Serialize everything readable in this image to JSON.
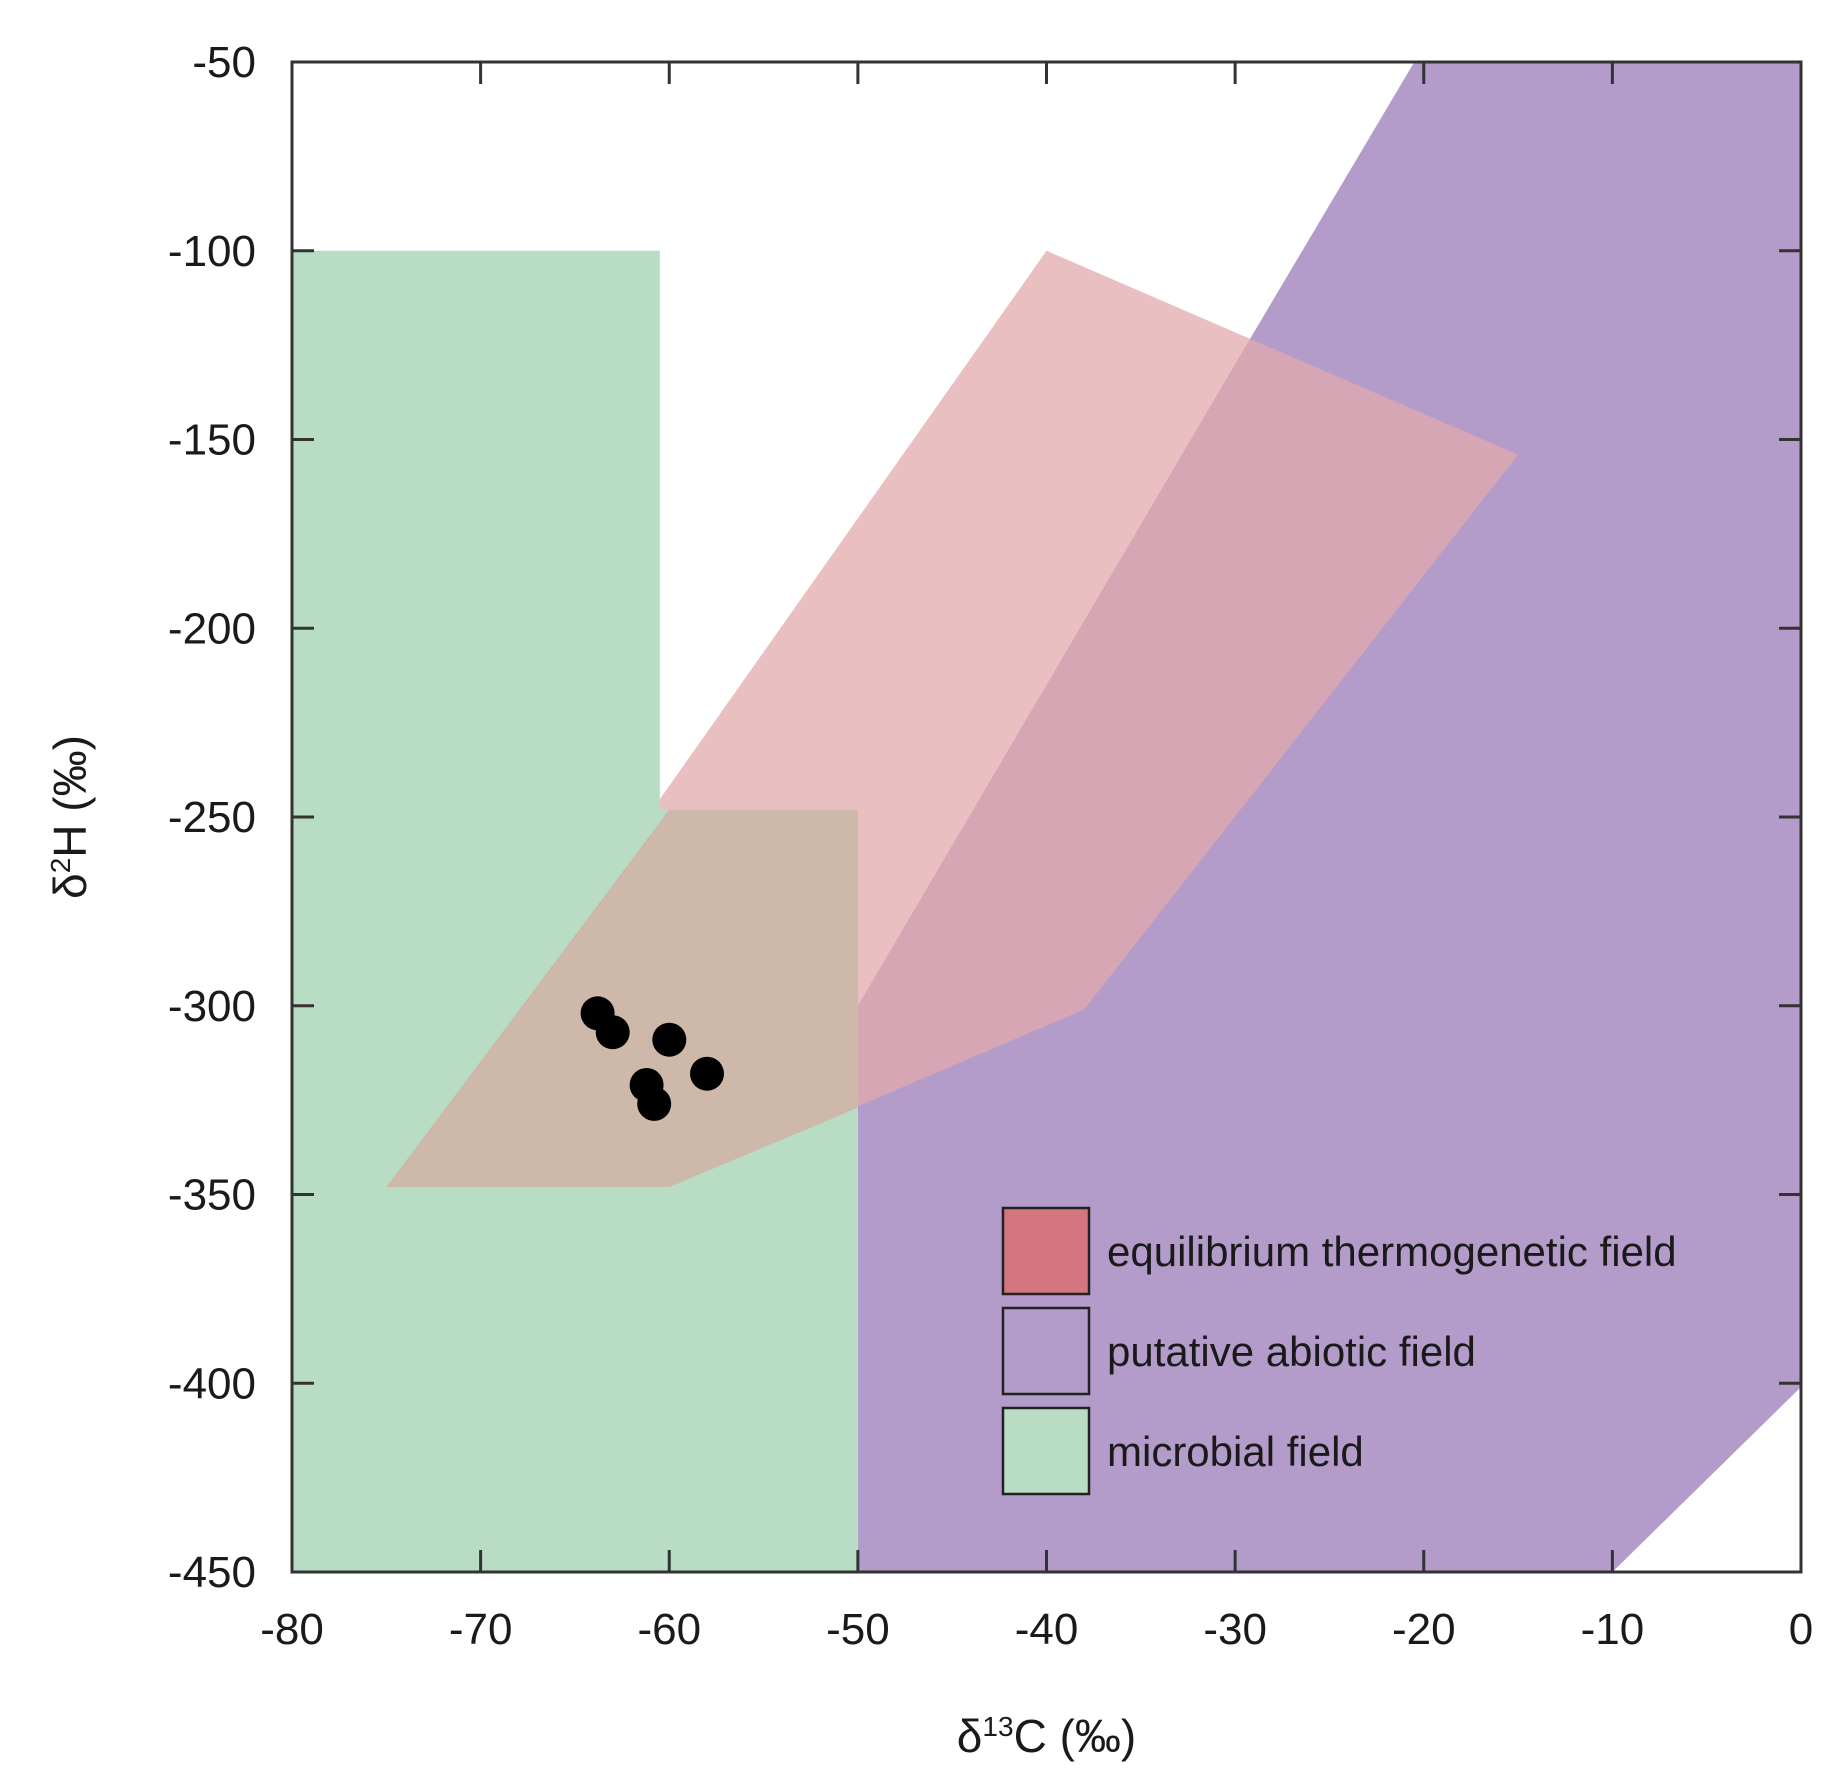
{
  "chart_data": {
    "type": "scatter",
    "title": "",
    "xlabel": {
      "base": "δ",
      "sup": "13",
      "rest": "C (‰)"
    },
    "ylabel": {
      "base": "δ",
      "sup": "2",
      "rest": "H (‰)"
    },
    "xlim": [
      -80,
      0
    ],
    "ylim": [
      -450,
      -50
    ],
    "xticks": [
      -80,
      -70,
      -60,
      -50,
      -40,
      -30,
      -20,
      -10,
      0
    ],
    "yticks": [
      -50,
      -100,
      -150,
      -200,
      -250,
      -300,
      -350,
      -400,
      -450
    ],
    "xtick_labels": [
      "-80",
      "-70",
      "-60",
      "-50",
      "-40",
      "-30",
      "-20",
      "-10",
      "0"
    ],
    "ytick_labels": [
      "-50",
      "-100",
      "-150",
      "-200",
      "-250",
      "-300",
      "-350",
      "-400",
      "-450"
    ],
    "grid": false,
    "legend_position": "bottom-right",
    "fields": [
      {
        "name": "putative abiotic field",
        "color": "#b39bca",
        "polygon": [
          [
            -20.5,
            -50
          ],
          [
            0,
            -50
          ],
          [
            0,
            -401
          ],
          [
            -10,
            -450
          ],
          [
            -50,
            -450
          ],
          [
            -50,
            -300
          ],
          [
            -30,
            -130
          ]
        ]
      },
      {
        "name": "equilibrium thermogenetic field",
        "color": "#e3a9ad",
        "opacity": 0.75,
        "polygon": [
          [
            -40,
            -100
          ],
          [
            -15,
            -154
          ],
          [
            -38,
            -301
          ],
          [
            -60,
            -348
          ],
          [
            -75,
            -348
          ]
        ]
      },
      {
        "name": "microbial field",
        "color": "#b8dcc4",
        "polygon": [
          [
            -80,
            -100
          ],
          [
            -60.5,
            -100
          ],
          [
            -60.5,
            -248
          ],
          [
            -50,
            -248
          ],
          [
            -50,
            -450
          ],
          [
            -80,
            -450
          ]
        ]
      }
    ],
    "overlap_region": {
      "color": "#cdb8aa",
      "polygon": [
        [
          -75,
          -348
        ],
        [
          -60,
          -348
        ],
        [
          -50,
          -327
        ],
        [
          -50,
          -248
        ],
        [
          -60,
          -248
        ]
      ]
    },
    "points": [
      {
        "x": -63.8,
        "y": -302
      },
      {
        "x": -63.0,
        "y": -307
      },
      {
        "x": -60.0,
        "y": -309
      },
      {
        "x": -58.0,
        "y": -318
      },
      {
        "x": -61.2,
        "y": -321
      },
      {
        "x": -60.8,
        "y": -326
      }
    ],
    "legend": [
      {
        "label": "equilibrium thermogenetic field",
        "color": "#d4767d"
      },
      {
        "label": "putative abiotic field",
        "color": "#b39bca"
      },
      {
        "label": "microbial field",
        "color": "#b8dcc4"
      }
    ]
  }
}
